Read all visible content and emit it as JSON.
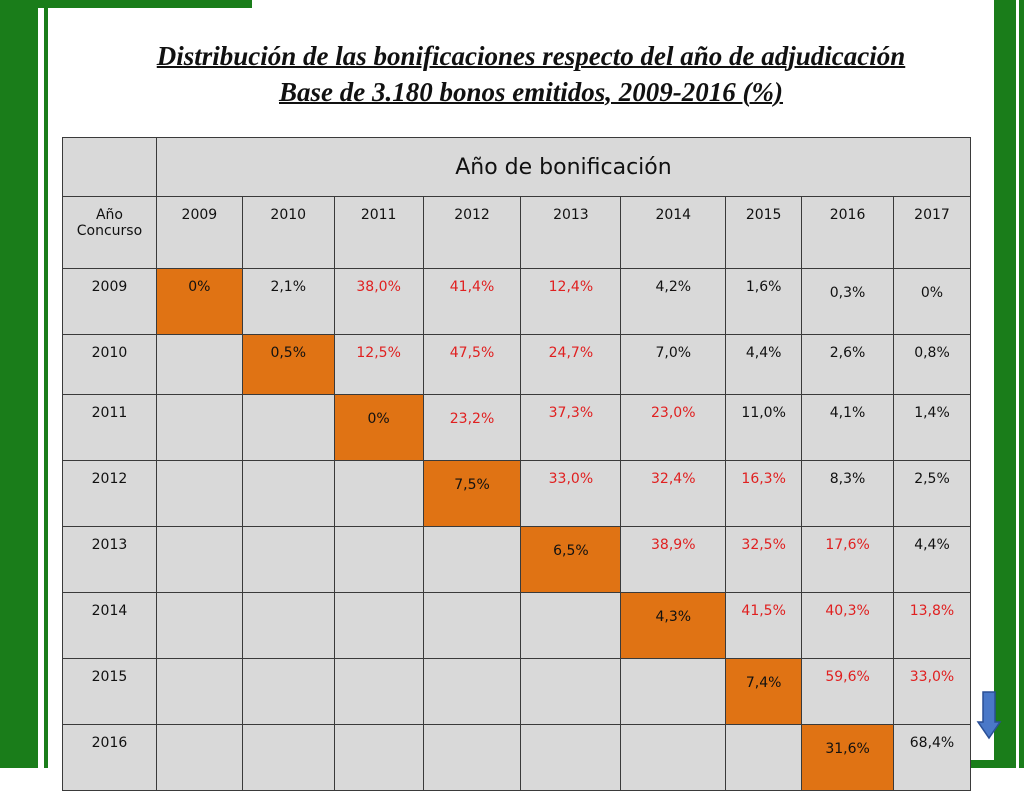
{
  "title": {
    "line1": "Distribución de las bonificaciones respecto del año de adjudicación",
    "line2": "Base de 3.180 bonos emitidos, 2009-2016 (%)"
  },
  "table": {
    "group_header": "Año de bonificación",
    "corner_label": "Año Concurso",
    "columns": [
      "2009",
      "2010",
      "2011",
      "2012",
      "2013",
      "2014",
      "2015",
      "2016",
      "2017"
    ],
    "rows": [
      {
        "year": "2009",
        "start": 0,
        "cells": [
          {
            "v": "0%",
            "diag": true
          },
          {
            "v": "2,1%"
          },
          {
            "v": "38,0%",
            "red": true
          },
          {
            "v": "41,4%",
            "red": true
          },
          {
            "v": "12,4%",
            "red": true
          },
          {
            "v": "4,2%"
          },
          {
            "v": "1,6%"
          },
          {
            "v": "0,3%",
            "lower": true
          },
          {
            "v": "0%",
            "lower": true
          }
        ]
      },
      {
        "year": "2010",
        "start": 1,
        "cells": [
          {
            "v": "0,5%",
            "diag": true
          },
          {
            "v": "12,5%",
            "red": true
          },
          {
            "v": "47,5%",
            "red": true
          },
          {
            "v": "24,7%",
            "red": true
          },
          {
            "v": "7,0%"
          },
          {
            "v": "4,4%"
          },
          {
            "v": "2,6%"
          },
          {
            "v": "0,8%"
          }
        ]
      },
      {
        "year": "2011",
        "start": 2,
        "cells": [
          {
            "v": "0%",
            "diag": true,
            "lower": true
          },
          {
            "v": "23,2%",
            "red": true,
            "lower": true
          },
          {
            "v": "37,3%",
            "red": true
          },
          {
            "v": "23,0%",
            "red": true
          },
          {
            "v": "11,0%"
          },
          {
            "v": "4,1%"
          },
          {
            "v": "1,4%"
          }
        ]
      },
      {
        "year": "2012",
        "start": 3,
        "cells": [
          {
            "v": "7,5%",
            "diag": true,
            "lower": true
          },
          {
            "v": "33,0%",
            "red": true
          },
          {
            "v": "32,4%",
            "red": true
          },
          {
            "v": "16,3%",
            "red": true
          },
          {
            "v": "8,3%"
          },
          {
            "v": "2,5%"
          }
        ]
      },
      {
        "year": "2013",
        "start": 4,
        "cells": [
          {
            "v": "6,5%",
            "diag": true,
            "lower": true
          },
          {
            "v": "38,9%",
            "red": true
          },
          {
            "v": "32,5%",
            "red": true
          },
          {
            "v": "17,6%",
            "red": true
          },
          {
            "v": "4,4%"
          }
        ]
      },
      {
        "year": "2014",
        "start": 5,
        "cells": [
          {
            "v": "4,3%",
            "diag": true,
            "lower": true
          },
          {
            "v": "41,5%",
            "red": true
          },
          {
            "v": "40,3%",
            "red": true
          },
          {
            "v": "13,8%",
            "red": true
          }
        ]
      },
      {
        "year": "2015",
        "start": 6,
        "cells": [
          {
            "v": "7,4%",
            "diag": true,
            "lower": true
          },
          {
            "v": "59,6%",
            "red": true
          },
          {
            "v": "33,0%",
            "red": true
          }
        ]
      },
      {
        "year": "2016",
        "start": 7,
        "cells": [
          {
            "v": "31,6%",
            "diag": true,
            "lower": true
          },
          {
            "v": "68,4%"
          }
        ]
      }
    ]
  },
  "colors": {
    "frame_green": "#1a7d1a",
    "diagonal_orange": "#e07314",
    "highlight_red": "#e02020",
    "cell_gray": "#d9d9d9"
  },
  "icons": {
    "nav_arrow": "down-arrow-icon"
  }
}
